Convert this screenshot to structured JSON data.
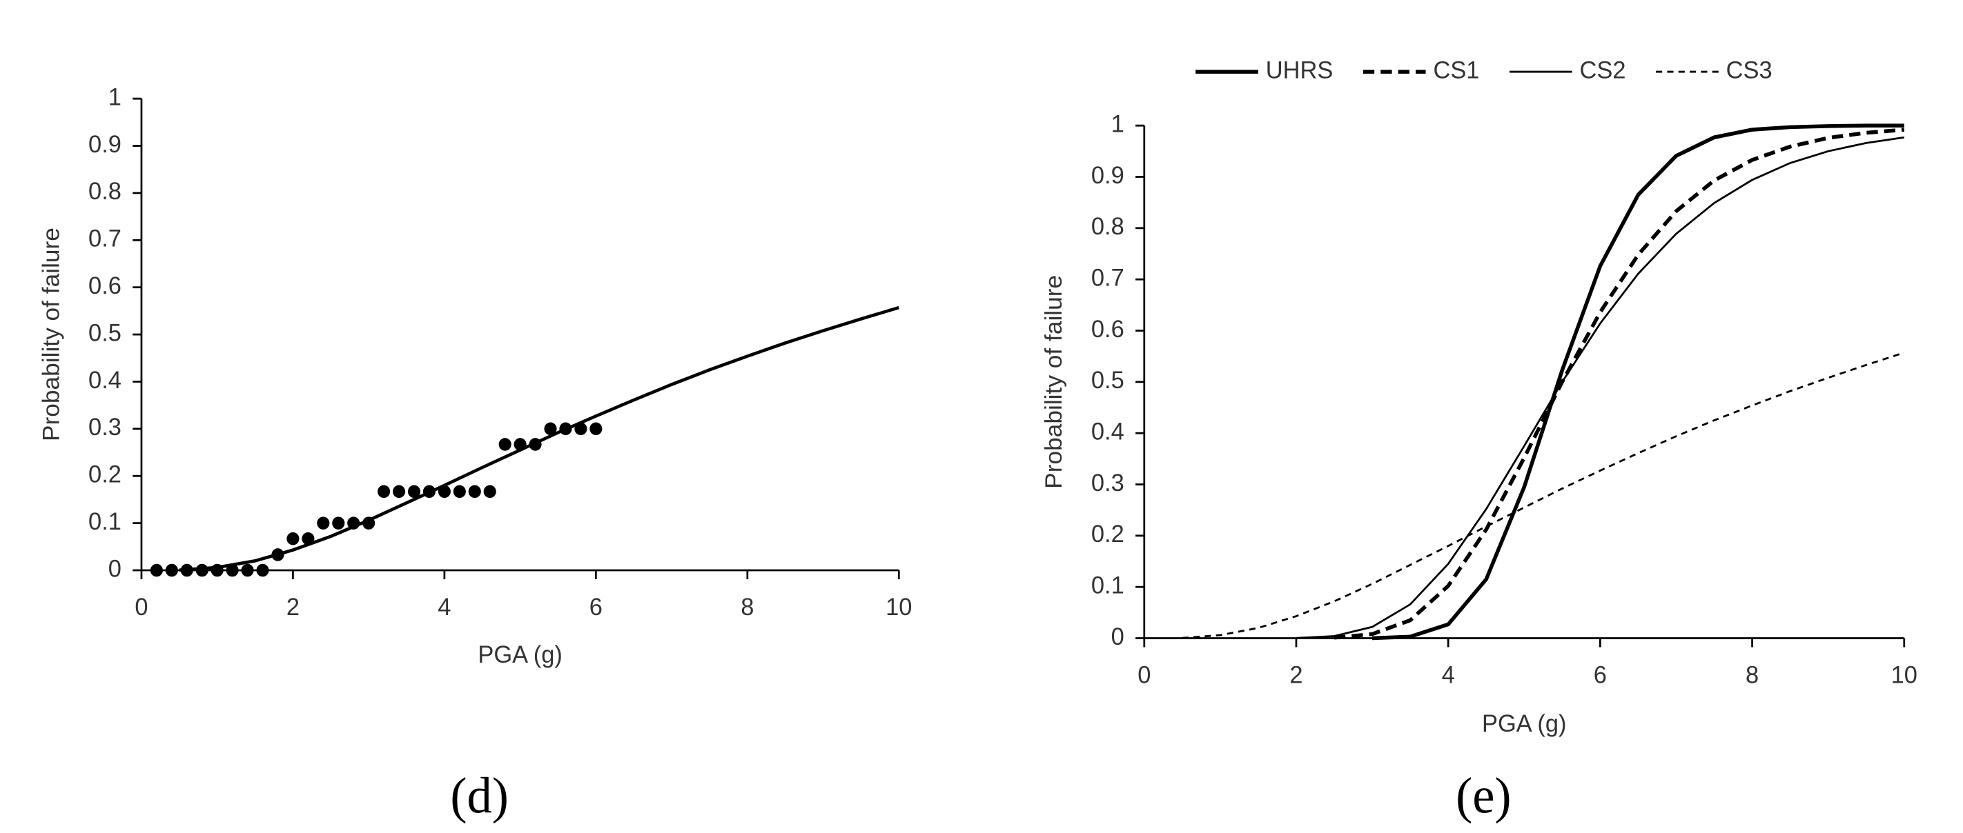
{
  "chart_data": [
    {
      "type": "scatter",
      "label": "(d)",
      "x_label": "PGA (g)",
      "y_label": "Probability of failure",
      "xlim": [
        0,
        10
      ],
      "ylim": [
        0,
        1
      ],
      "xticks": [
        0,
        2,
        4,
        6,
        8,
        10
      ],
      "yticks": [
        0,
        0.1,
        0.2,
        0.3,
        0.4,
        0.5,
        0.6,
        0.7,
        0.8,
        0.9,
        1
      ],
      "series": [
        {
          "type": "scatter",
          "color": "#000000",
          "x": [
            0.2,
            0.4,
            0.6,
            0.8,
            1.0,
            1.2,
            1.4,
            1.6,
            1.8,
            2.0,
            2.2,
            2.4,
            2.6,
            2.8,
            3.0,
            3.2,
            3.4,
            3.6,
            3.8,
            4.0,
            4.2,
            4.4,
            4.6,
            4.8,
            5.0,
            5.2,
            5.4,
            5.6,
            5.8,
            6.0
          ],
          "values": [
            0,
            0,
            0,
            0,
            0,
            0,
            0,
            0,
            0.033,
            0.067,
            0.067,
            0.1,
            0.1,
            0.1,
            0.1,
            0.167,
            0.167,
            0.167,
            0.167,
            0.167,
            0.167,
            0.167,
            0.167,
            0.267,
            0.267,
            0.267,
            0.3,
            0.3,
            0.3,
            0.3
          ]
        },
        {
          "type": "line",
          "color": "#000000",
          "line_style": "solid",
          "line_width": 2.5,
          "x": [
            0.5,
            1,
            1.5,
            2,
            2.5,
            3,
            3.5,
            4,
            4.5,
            5,
            5.5,
            6,
            6.5,
            7,
            7.5,
            8,
            8.5,
            9,
            9.5,
            10
          ],
          "values": [
            0.0005,
            0.006,
            0.02,
            0.043,
            0.072,
            0.106,
            0.143,
            0.18,
            0.218,
            0.255,
            0.292,
            0.327,
            0.361,
            0.394,
            0.425,
            0.454,
            0.482,
            0.508,
            0.533,
            0.557
          ]
        }
      ]
    },
    {
      "type": "line",
      "label": "(e)",
      "x_label": "PGA (g)",
      "y_label": "Probability of failure",
      "xlim": [
        0,
        10
      ],
      "ylim": [
        0,
        1
      ],
      "xticks": [
        0,
        2,
        4,
        6,
        8,
        10
      ],
      "yticks": [
        0,
        0.1,
        0.2,
        0.3,
        0.4,
        0.5,
        0.6,
        0.7,
        0.8,
        0.9,
        1
      ],
      "legend": "top",
      "series": [
        {
          "name": "UHRS",
          "color": "#000000",
          "line_style": "solid",
          "line_width": 3,
          "x": [
            3,
            3.5,
            4,
            4.5,
            5,
            5.5,
            6,
            6.5,
            7,
            7.5,
            8,
            8.5,
            9,
            9.5,
            10
          ],
          "values": [
            0,
            0.003,
            0.027,
            0.115,
            0.295,
            0.523,
            0.726,
            0.865,
            0.941,
            0.977,
            0.992,
            0.997,
            0.999,
            1,
            1
          ]
        },
        {
          "name": "CS1",
          "color": "#000000",
          "line_style": "dashed",
          "line_width": 3,
          "x": [
            2.5,
            3,
            3.5,
            4,
            4.5,
            5,
            5.5,
            6,
            6.5,
            7,
            7.5,
            8,
            8.5,
            9,
            9.5,
            10
          ],
          "values": [
            0.001,
            0.008,
            0.035,
            0.102,
            0.212,
            0.352,
            0.5,
            0.636,
            0.748,
            0.833,
            0.893,
            0.933,
            0.959,
            0.976,
            0.986,
            0.992
          ]
        },
        {
          "name": "CS2",
          "color": "#000000",
          "line_style": "solid",
          "line_width": 1.5,
          "x": [
            2,
            2.5,
            3,
            3.5,
            4,
            4.5,
            5,
            5.5,
            6,
            6.5,
            7,
            7.5,
            8,
            8.5,
            9,
            9.5,
            10
          ],
          "values": [
            0.0004,
            0.004,
            0.022,
            0.066,
            0.145,
            0.252,
            0.375,
            0.5,
            0.614,
            0.711,
            0.789,
            0.849,
            0.894,
            0.927,
            0.95,
            0.966,
            0.977
          ]
        },
        {
          "name": "CS3",
          "color": "#000000",
          "line_style": "dashed",
          "line_width": 1.5,
          "x": [
            0.5,
            1,
            1.5,
            2,
            2.5,
            3,
            3.5,
            4,
            4.5,
            5,
            5.5,
            6,
            6.5,
            7,
            7.5,
            8,
            8.5,
            9,
            9.5,
            10
          ],
          "values": [
            0.0005,
            0.006,
            0.02,
            0.043,
            0.072,
            0.106,
            0.143,
            0.18,
            0.218,
            0.255,
            0.292,
            0.327,
            0.361,
            0.394,
            0.425,
            0.454,
            0.482,
            0.508,
            0.533,
            0.557
          ]
        }
      ]
    }
  ]
}
